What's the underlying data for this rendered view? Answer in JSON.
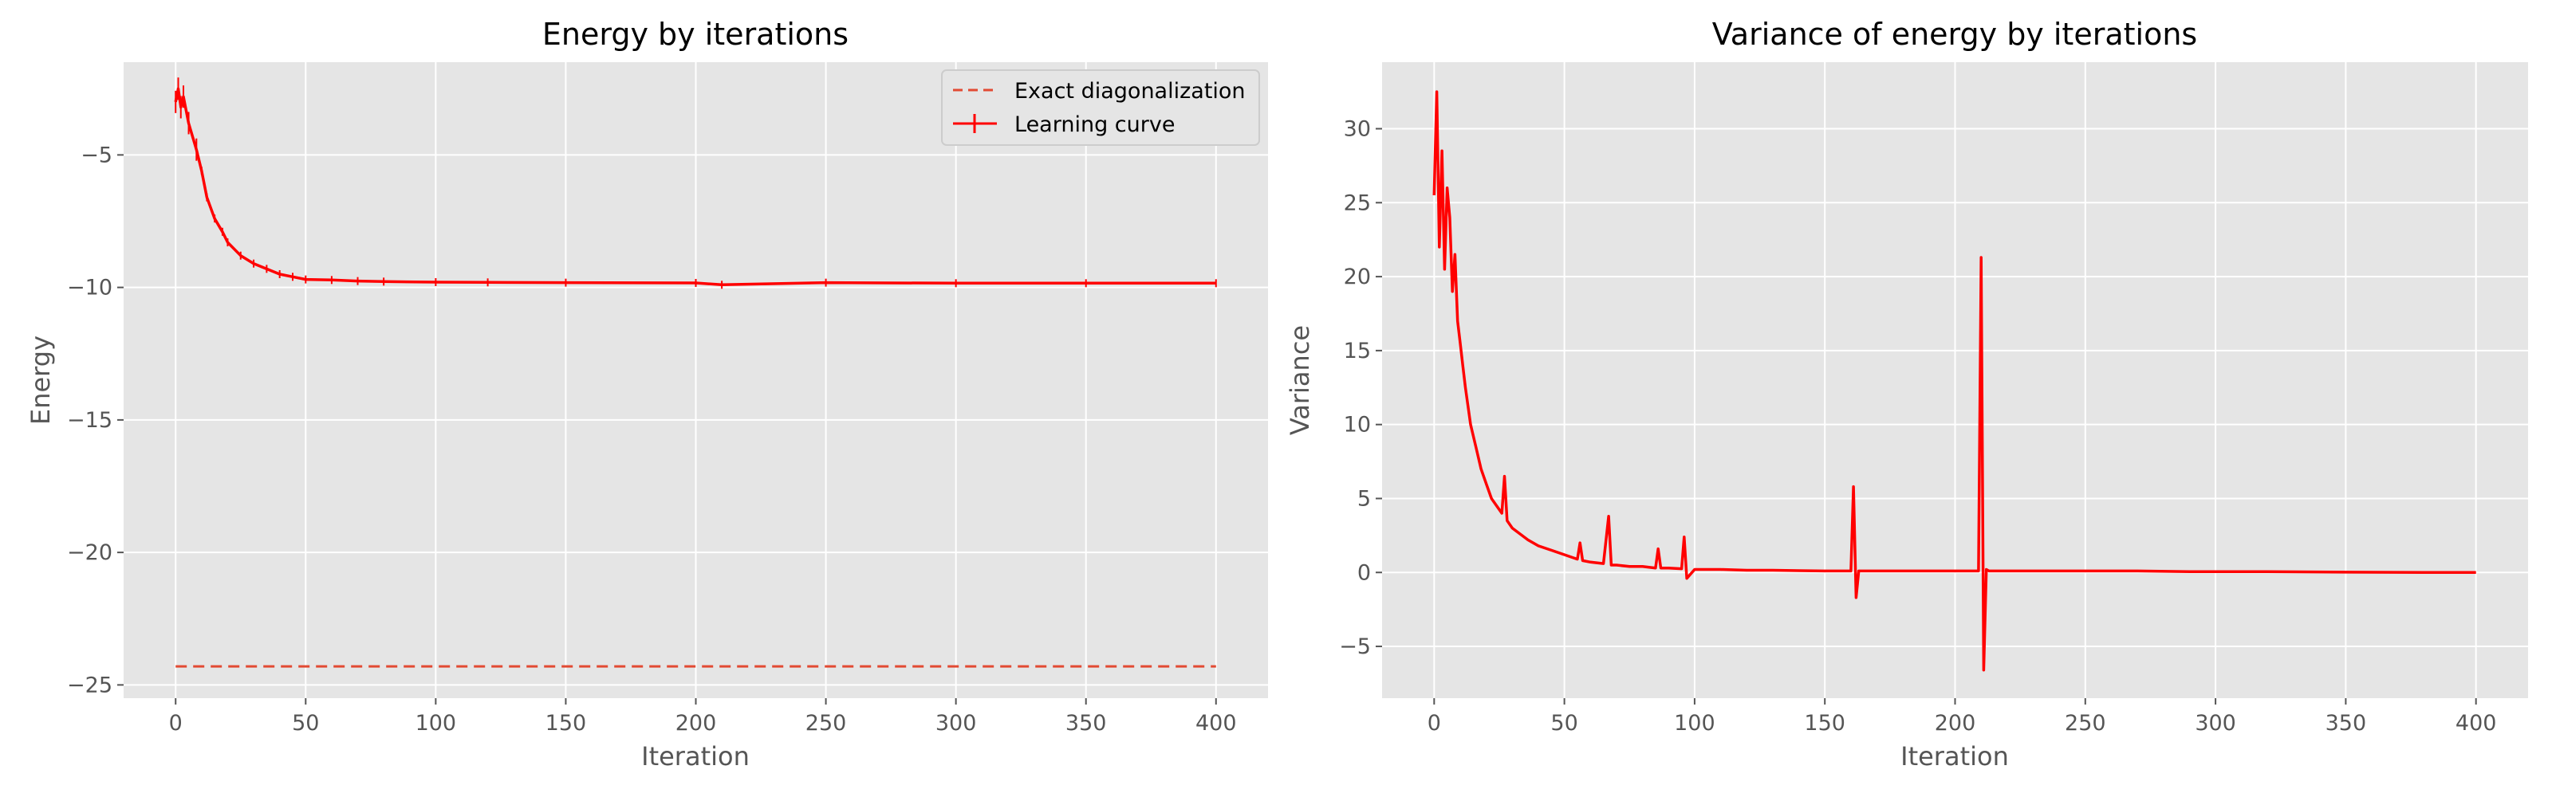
{
  "chart_data": [
    {
      "type": "line",
      "title": "Energy by iterations",
      "xlabel": "Iteration",
      "ylabel": "Energy",
      "xlim": [
        -20,
        420
      ],
      "ylim": [
        -25.5,
        -1.5
      ],
      "xticks": [
        0,
        50,
        100,
        150,
        200,
        250,
        300,
        350,
        400
      ],
      "xtick_labels": [
        "0",
        "50",
        "100",
        "150",
        "200",
        "250",
        "300",
        "350",
        "400"
      ],
      "yticks": [
        -5,
        -10,
        -15,
        -20,
        -25
      ],
      "ytick_labels": [
        "−5",
        "−10",
        "−15",
        "−20",
        "−25"
      ],
      "grid": true,
      "legend_position": "top-right",
      "series": [
        {
          "name": "Exact diagonalization",
          "style": "dashed",
          "color": "#e24a33",
          "x": [
            0,
            400
          ],
          "y": [
            -24.3,
            -24.3
          ]
        },
        {
          "name": "Learning curve",
          "style": "solid",
          "color": "#ff0000",
          "error_bars": true,
          "x": [
            0,
            1,
            2,
            3,
            5,
            8,
            10,
            12,
            15,
            18,
            20,
            25,
            30,
            35,
            40,
            45,
            50,
            60,
            70,
            80,
            100,
            120,
            150,
            200,
            210,
            250,
            300,
            350,
            400
          ],
          "y": [
            -3.0,
            -2.5,
            -3.2,
            -2.8,
            -3.8,
            -4.8,
            -5.6,
            -6.6,
            -7.4,
            -7.9,
            -8.3,
            -8.8,
            -9.1,
            -9.3,
            -9.5,
            -9.6,
            -9.7,
            -9.72,
            -9.76,
            -9.78,
            -9.8,
            -9.81,
            -9.82,
            -9.83,
            -9.9,
            -9.82,
            -9.84,
            -9.84,
            -9.84
          ]
        }
      ]
    },
    {
      "type": "line",
      "title": "Variance of energy by iterations",
      "xlabel": "Iteration",
      "ylabel": "Variance",
      "xlim": [
        -20,
        420
      ],
      "ylim": [
        -8.5,
        34.5
      ],
      "xticks": [
        0,
        50,
        100,
        150,
        200,
        250,
        300,
        350,
        400
      ],
      "xtick_labels": [
        "0",
        "50",
        "100",
        "150",
        "200",
        "250",
        "300",
        "350",
        "400"
      ],
      "yticks": [
        30,
        25,
        20,
        15,
        10,
        5,
        0,
        -5
      ],
      "ytick_labels": [
        "30",
        "25",
        "20",
        "15",
        "10",
        "5",
        "0",
        "−5"
      ],
      "grid": true,
      "series": [
        {
          "color": "#ff0000",
          "x": [
            0,
            1,
            2,
            3,
            4,
            5,
            6,
            7,
            8,
            9,
            10,
            11,
            12,
            14,
            16,
            18,
            20,
            22,
            24,
            26,
            27,
            28,
            30,
            33,
            36,
            40,
            45,
            50,
            55,
            56,
            57,
            60,
            65,
            67,
            68,
            70,
            75,
            80,
            85,
            86,
            87,
            90,
            95,
            96,
            97,
            100,
            110,
            120,
            130,
            140,
            150,
            160,
            161,
            162,
            163,
            164,
            170,
            180,
            190,
            200,
            205,
            209,
            210,
            211,
            212,
            213,
            220,
            230,
            250,
            270,
            290,
            300,
            320,
            350,
            380,
            400
          ],
          "y": [
            25.5,
            32.5,
            22.0,
            28.5,
            20.5,
            26.0,
            24.0,
            19.0,
            21.5,
            17.0,
            15.5,
            14.0,
            12.5,
            10.0,
            8.5,
            7.0,
            6.0,
            5.0,
            4.5,
            4.0,
            6.5,
            3.5,
            3.0,
            2.6,
            2.2,
            1.8,
            1.5,
            1.2,
            0.9,
            2.0,
            0.8,
            0.7,
            0.6,
            3.8,
            0.5,
            0.5,
            0.4,
            0.4,
            0.3,
            1.6,
            0.3,
            0.3,
            0.25,
            2.4,
            -0.4,
            0.2,
            0.2,
            0.15,
            0.15,
            0.12,
            0.1,
            0.1,
            5.8,
            -1.7,
            0.1,
            0.1,
            0.1,
            0.1,
            0.1,
            0.1,
            0.1,
            0.1,
            21.3,
            -6.6,
            0.2,
            0.1,
            0.1,
            0.1,
            0.1,
            0.1,
            0.05,
            0.05,
            0.05,
            0.02,
            0.0,
            0.0
          ]
        }
      ]
    }
  ]
}
